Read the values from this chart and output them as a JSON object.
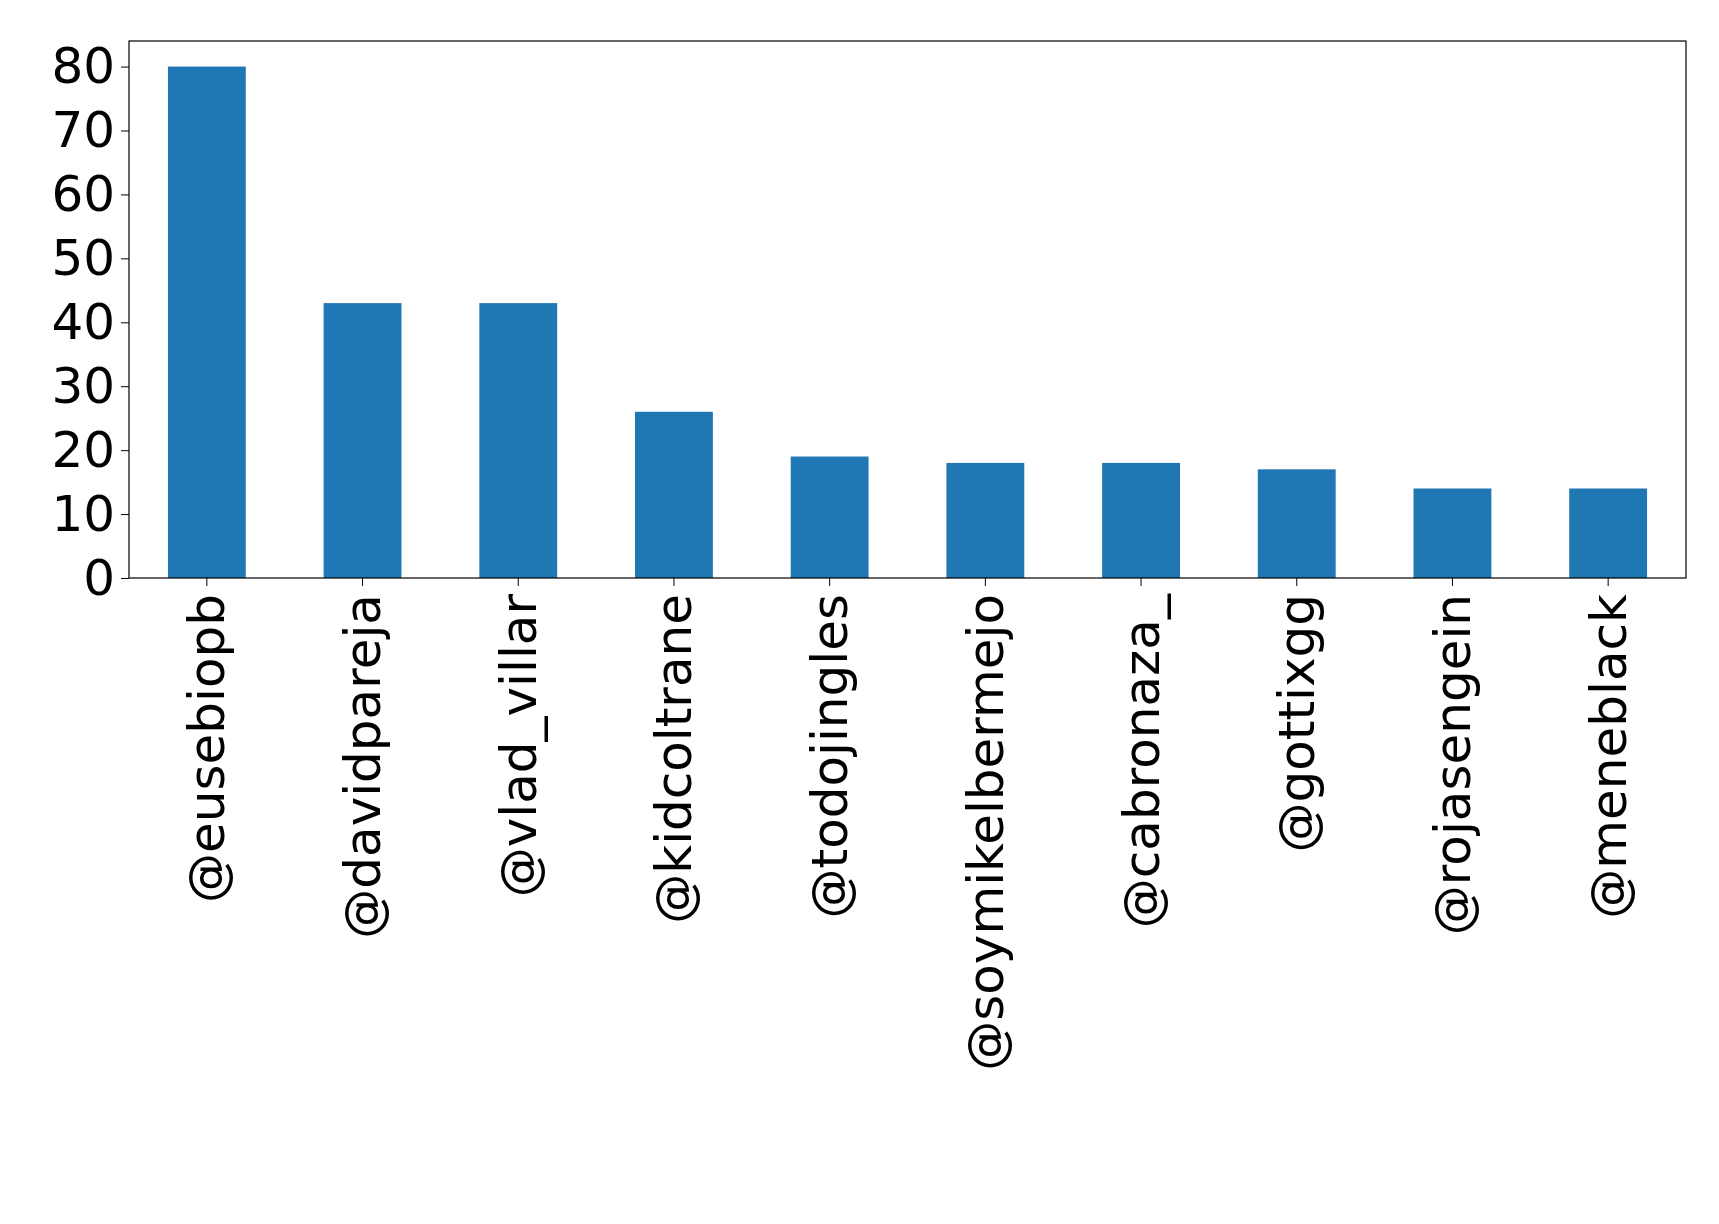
{
  "chart_data": {
    "type": "bar",
    "categories": [
      "@eusebiopb",
      "@davidpareja",
      "@vlad_villar",
      "@kidcoltrane",
      "@todojingles",
      "@soymikelbermejo",
      "@cabronaza_",
      "@gottixgg",
      "@rojasengein",
      "@meneblack"
    ],
    "values": [
      80,
      43,
      43,
      26,
      19,
      18,
      18,
      17,
      14,
      14
    ],
    "color": "#1f77b4",
    "ylim": [
      0,
      84
    ],
    "yticks": [
      0,
      10,
      20,
      30,
      40,
      50,
      60,
      70,
      80
    ],
    "grid": false
  }
}
